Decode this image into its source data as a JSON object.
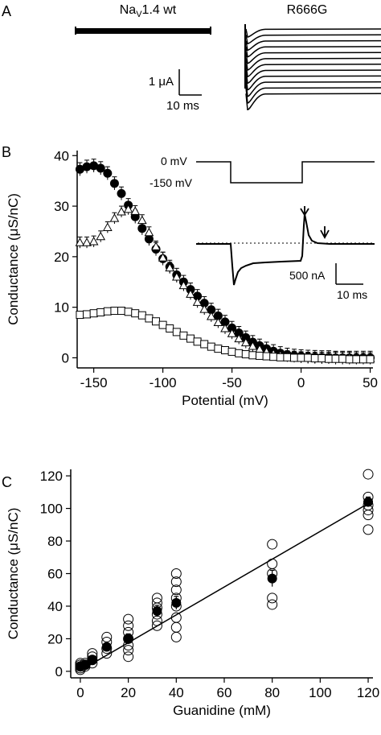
{
  "panel_labels": {
    "a": "A",
    "b": "B",
    "c": "C"
  },
  "panel_a": {
    "trace_left_title_main": "Na",
    "trace_left_title_sub": "V",
    "trace_left_title_rest": "1.4 wt",
    "trace_right_title": "R666G",
    "scale_current": "1 μA",
    "scale_time": "10 ms"
  },
  "panel_b_inset": {
    "voltage_high": "0 mV",
    "voltage_low": "-150 mV",
    "scale_current": "500 nA",
    "scale_time": "10 ms"
  },
  "chart_data": [
    {
      "type": "scatter",
      "panel": "B",
      "xlabel": "Potential (mV)",
      "ylabel": "Conductance (μS/nC)",
      "xlim": [
        -162,
        52
      ],
      "ylim": [
        -2,
        41
      ],
      "xticks": [
        -150,
        -100,
        -50,
        0,
        50
      ],
      "yticks": [
        0,
        10,
        20,
        30,
        40
      ],
      "grid": false,
      "series": [
        {
          "marker": "filled-circle",
          "x": [
            -160,
            -155,
            -150,
            -145,
            -140,
            -135,
            -130,
            -125,
            -120,
            -115,
            -110,
            -105,
            -100,
            -95,
            -90,
            -85,
            -80,
            -75,
            -70,
            -65,
            -60,
            -55,
            -50,
            -45,
            -40,
            -35,
            -30,
            -25,
            -20,
            -15,
            -10,
            -5,
            0,
            5,
            10,
            15,
            20,
            25,
            30,
            35,
            40,
            45,
            50
          ],
          "y": [
            37.3,
            37.8,
            38,
            37.5,
            36.5,
            34.5,
            32.5,
            30.2,
            27.9,
            25.6,
            23.5,
            21.5,
            19.6,
            18,
            16.4,
            15,
            13.5,
            12.2,
            10.8,
            9.5,
            8.3,
            7.1,
            5.9,
            4.9,
            4,
            3.1,
            2.4,
            1.8,
            1.3,
            0.9,
            0.6,
            0.4,
            0.3,
            0.2,
            0.15,
            0.1,
            0.1,
            0,
            0,
            0,
            0,
            0,
            0
          ],
          "error": 1.3
        },
        {
          "marker": "open-triangle",
          "x": [
            -160,
            -155,
            -150,
            -145,
            -140,
            -135,
            -130,
            -125,
            -120,
            -115,
            -110,
            -105,
            -100,
            -95,
            -90,
            -85,
            -80,
            -75,
            -70,
            -65,
            -60,
            -55,
            -50,
            -45,
            -40,
            -35,
            -30,
            -25,
            -20,
            -15,
            -10,
            -5,
            0,
            5,
            10,
            15,
            20,
            25,
            30,
            35,
            40,
            45,
            50
          ],
          "y": [
            22.8,
            22.8,
            23,
            24,
            25.8,
            27.6,
            28.9,
            29.4,
            29,
            27.2,
            24.8,
            22,
            19.8,
            17.8,
            16,
            14.3,
            12.6,
            11,
            9.6,
            8.2,
            7,
            5.8,
            4.8,
            3.8,
            3,
            2.3,
            1.7,
            1.2,
            0.8,
            0.5,
            0.3,
            0.2,
            0.1,
            0,
            0,
            0,
            0,
            0,
            0,
            0,
            -0.1,
            -0.1,
            -0.1
          ],
          "error": 1.1
        },
        {
          "marker": "open-square",
          "x": [
            -160,
            -155,
            -150,
            -145,
            -140,
            -135,
            -130,
            -125,
            -120,
            -115,
            -110,
            -105,
            -100,
            -95,
            -90,
            -85,
            -80,
            -75,
            -70,
            -65,
            -60,
            -55,
            -50,
            -45,
            -40,
            -35,
            -30,
            -25,
            -20,
            -15,
            -10,
            -5,
            0,
            5,
            10,
            15,
            20,
            25,
            30,
            35,
            40,
            45,
            50
          ],
          "y": [
            8.5,
            8.6,
            8.8,
            9,
            9.2,
            9.3,
            9.3,
            9.1,
            8.8,
            8.4,
            7.8,
            7.2,
            6.5,
            5.8,
            5.1,
            4.4,
            3.8,
            3.2,
            2.7,
            2.2,
            1.8,
            1.5,
            1.2,
            0.9,
            0.7,
            0.5,
            0.4,
            0.3,
            0.2,
            0.1,
            0.1,
            0,
            0,
            0,
            -0.1,
            -0.1,
            -0.2,
            -0.2,
            -0.2,
            -0.3,
            -0.3,
            -0.3,
            -0.3
          ],
          "error": 0.5
        }
      ]
    },
    {
      "type": "scatter",
      "panel": "C",
      "xlabel": "Guanidine (mM)",
      "ylabel": "Conductance (μS/nC)",
      "xlim": [
        -4,
        122
      ],
      "ylim": [
        -4,
        124
      ],
      "xticks": [
        0,
        20,
        40,
        60,
        80,
        100,
        120
      ],
      "yticks": [
        0,
        20,
        40,
        60,
        80,
        100,
        120
      ],
      "grid": false,
      "individual_points": [
        [
          0,
          2
        ],
        [
          0,
          3
        ],
        [
          0,
          4
        ],
        [
          0,
          5
        ],
        [
          0,
          1
        ],
        [
          2,
          3
        ],
        [
          2,
          4
        ],
        [
          2,
          5
        ],
        [
          5,
          5
        ],
        [
          5,
          7
        ],
        [
          5,
          9
        ],
        [
          5,
          11
        ],
        [
          11,
          11
        ],
        [
          11,
          14
        ],
        [
          11,
          18
        ],
        [
          11,
          21
        ],
        [
          20,
          9
        ],
        [
          20,
          13
        ],
        [
          20,
          16
        ],
        [
          20,
          20
        ],
        [
          20,
          24
        ],
        [
          20,
          28
        ],
        [
          20,
          32
        ],
        [
          32,
          28
        ],
        [
          32,
          31
        ],
        [
          32,
          35
        ],
        [
          32,
          39
        ],
        [
          32,
          42
        ],
        [
          32,
          45
        ],
        [
          40,
          21
        ],
        [
          40,
          27
        ],
        [
          40,
          33
        ],
        [
          40,
          40
        ],
        [
          40,
          45
        ],
        [
          40,
          50
        ],
        [
          40,
          55
        ],
        [
          40,
          60
        ],
        [
          80,
          41
        ],
        [
          80,
          45
        ],
        [
          80,
          60
        ],
        [
          80,
          66
        ],
        [
          80,
          78
        ],
        [
          120,
          87
        ],
        [
          120,
          96
        ],
        [
          120,
          99
        ],
        [
          120,
          102
        ],
        [
          120,
          107
        ],
        [
          120,
          121
        ]
      ],
      "means": {
        "x": [
          0,
          2,
          5,
          11,
          20,
          32,
          40,
          80,
          120
        ],
        "y": [
          3,
          4,
          7,
          15,
          20,
          37,
          42,
          57,
          104
        ],
        "error": [
          1,
          1,
          1.5,
          2,
          3,
          3.5,
          4,
          5,
          3
        ]
      },
      "fit_line": {
        "x": [
          0,
          120
        ],
        "y": [
          0.5,
          103
        ]
      }
    }
  ]
}
